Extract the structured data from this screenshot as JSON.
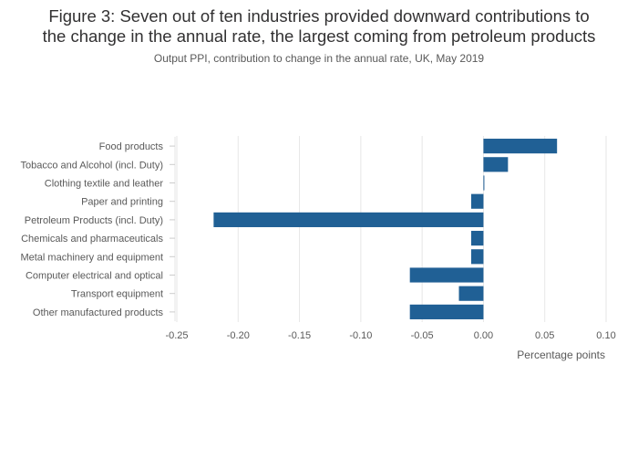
{
  "title_line1": "Figure 3: Seven out of ten industries provided downward contributions to",
  "title_line2": "the change in the annual rate, the largest coming from petroleum products",
  "subtitle": "Output PPI, contribution to change in the annual rate, UK, May 2019",
  "chart_data": {
    "type": "bar",
    "orientation": "horizontal",
    "categories": [
      "Food products",
      "Tobacco and Alcohol (incl. Duty)",
      "Clothing textile and leather",
      "Paper and printing",
      "Petroleum Products (incl. Duty)",
      "Chemicals and pharmaceuticals",
      "Metal machinery and equipment",
      "Computer electrical and optical",
      "Transport equipment",
      "Other manufactured products"
    ],
    "values": [
      0.06,
      0.02,
      0.0,
      -0.01,
      -0.22,
      -0.01,
      -0.01,
      -0.06,
      -0.02,
      -0.06
    ],
    "xlabel": "Percentage points",
    "ylabel": "",
    "xlim": [
      -0.25,
      0.1
    ],
    "xticks": [
      -0.25,
      -0.2,
      -0.15,
      -0.1,
      -0.05,
      0,
      0.05,
      0.1
    ],
    "xtick_labels": [
      "-0.25",
      "-0.20",
      "-0.15",
      "-0.10",
      "-0.05",
      "0.00",
      "0.05",
      "0.10"
    ],
    "grid": true,
    "bar_color": "#206095"
  }
}
